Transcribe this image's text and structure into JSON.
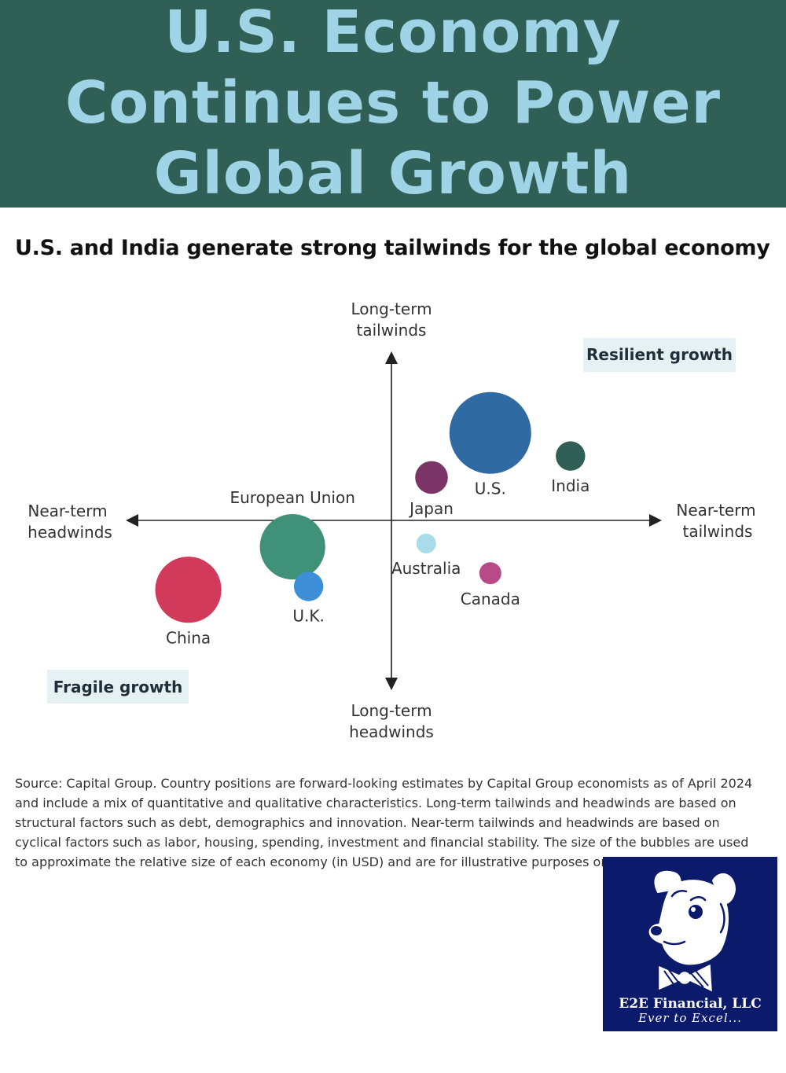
{
  "header": {
    "title_lines": [
      "U.S. Economy",
      "Continues to Power",
      "Global Growth"
    ]
  },
  "chart_data": {
    "type": "scatter",
    "subtitle": "U.S. and India generate strong tailwinds for the global economy",
    "axes": {
      "top": [
        "Long-term",
        "tailwinds"
      ],
      "bottom": [
        "Long-term",
        "headwinds"
      ],
      "left": [
        "Near-term",
        "headwinds"
      ],
      "right": [
        "Near-term",
        "tailwinds"
      ],
      "xlim": [
        -1,
        1
      ],
      "ylim": [
        -1,
        1
      ]
    },
    "quadrant_labels": {
      "top_right": "Resilient growth",
      "bottom_left": "Fragile growth"
    },
    "points": [
      {
        "label": "U.S.",
        "x": 0.37,
        "y": 0.53,
        "size": 1.0,
        "color": "#2f6aa3",
        "label_pos": "below"
      },
      {
        "label": "India",
        "x": 0.67,
        "y": 0.39,
        "size": 0.36,
        "color": "#2f5f55",
        "label_pos": "below"
      },
      {
        "label": "Japan",
        "x": 0.15,
        "y": 0.26,
        "size": 0.4,
        "color": "#7a3566",
        "label_pos": "below"
      },
      {
        "label": "European Union",
        "x": -0.37,
        "y": -0.16,
        "size": 0.8,
        "color": "#3f9178",
        "label_pos": "above"
      },
      {
        "label": "U.K.",
        "x": -0.31,
        "y": -0.4,
        "size": 0.36,
        "color": "#3d8fd8",
        "label_pos": "below"
      },
      {
        "label": "China",
        "x": -0.76,
        "y": -0.42,
        "size": 0.81,
        "color": "#d23a5b",
        "label_pos": "below"
      },
      {
        "label": "Australia",
        "x": 0.13,
        "y": -0.14,
        "size": 0.24,
        "color": "#a8dcea",
        "label_pos": "below"
      },
      {
        "label": "Canada",
        "x": 0.37,
        "y": -0.32,
        "size": 0.27,
        "color": "#b84a88",
        "label_pos": "below"
      }
    ],
    "grid": false,
    "legend": "none"
  },
  "source_text": "Source: Capital Group. Country positions are forward-looking estimates by Capital Group economists as of April 2024 and include a mix of quantitative and qualitative characteristics. Long-term tailwinds and headwinds are based on structural factors such as debt, demographics and innovation. Near-term tailwinds and headwinds are based on cyclical factors such as labor, housing, spending, investment and financial stability. The size of the bubbles are used to approximate the relative size of each economy (in USD) and are for illustrative purposes only.",
  "logo": {
    "name": "E2E Financial, LLC",
    "tagline": "Ever to Excel...",
    "icon": "dog-with-bowtie-icon",
    "background": "#0c1a6b"
  }
}
